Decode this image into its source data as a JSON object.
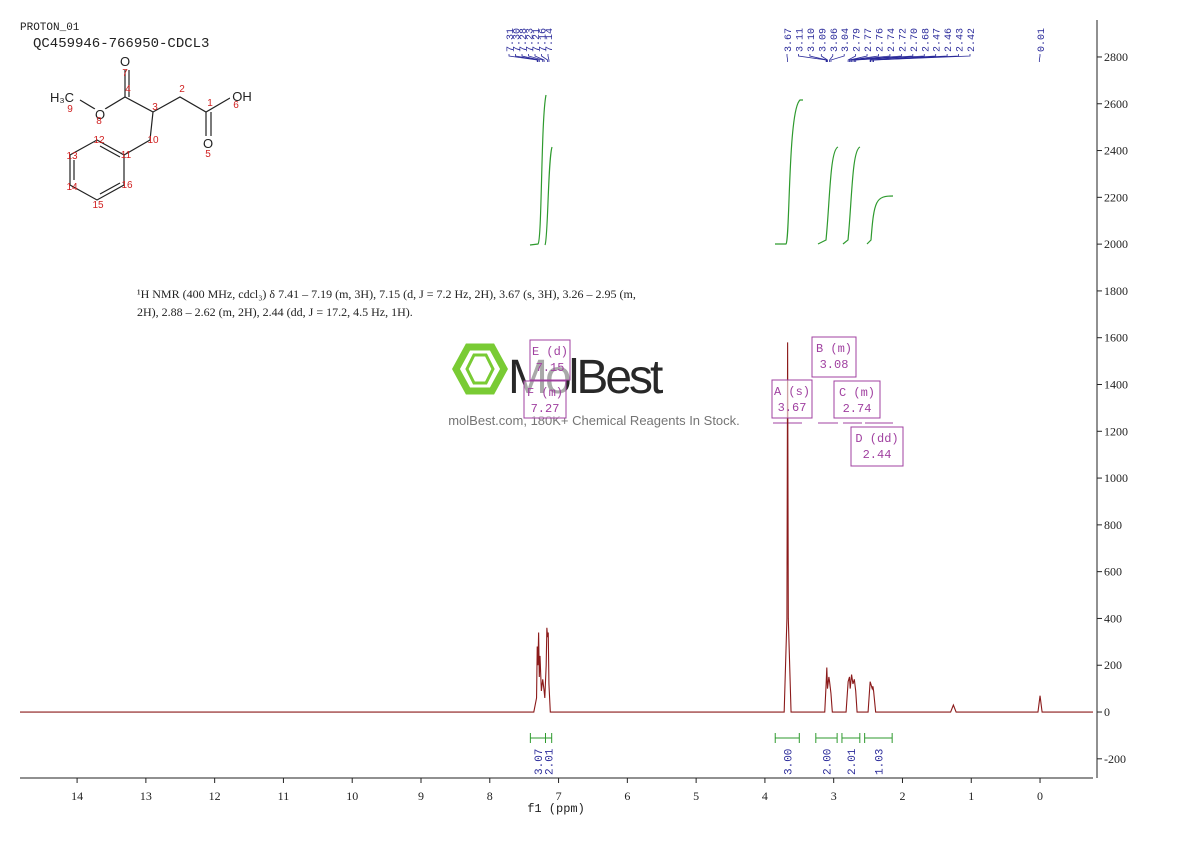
{
  "header": {
    "experiment": "PROTON_01",
    "sample": "QC459946-766950-CDCL3"
  },
  "molecule": {
    "atoms": [
      "O",
      "O",
      "OH",
      "O",
      "H₃C"
    ],
    "numbers": [
      "7",
      "4",
      "3",
      "2",
      "1",
      "6",
      "9",
      "8",
      "10",
      "5",
      "12",
      "11",
      "13",
      "16",
      "14",
      "15"
    ]
  },
  "description": [
    "¹H NMR (400 MHz, cdcl₃) δ 7.41 – 7.19 (m, 3H), 7.15 (d, J = 7.2 Hz, 2H), 3.67 (s, 3H), 3.26 – 2.95 (m,",
    "2H), 2.88 – 2.62 (m, 2H), 2.44 (dd, J = 17.2, 4.5 Hz, 1H)."
  ],
  "watermark": {
    "brand": "MolBest",
    "slogan": "molBest.com, 180K+ Chemical Reagents In Stock."
  },
  "chart_data": {
    "type": "line",
    "x_label": "f1 (ppm)",
    "xlim": [
      14.83,
      -0.77
    ],
    "xticks": [
      14,
      13,
      12,
      11,
      10,
      9,
      8,
      7,
      6,
      5,
      4,
      3,
      2,
      1,
      0
    ],
    "ylim": [
      -282,
      2958
    ],
    "yticks": [
      -200,
      0,
      200,
      400,
      600,
      800,
      1000,
      1200,
      1400,
      1600,
      1800,
      2000,
      2200,
      2400,
      2600,
      2800
    ],
    "series": [
      {
        "name": "spectrum",
        "color": "#8b1a1a",
        "x": [
          14.83,
          7.36,
          7.32,
          7.31,
          7.3,
          7.29,
          7.28,
          7.27,
          7.25,
          7.23,
          7.21,
          7.2,
          7.18,
          7.17,
          7.16,
          7.15,
          7.14,
          7.12,
          3.72,
          3.68,
          3.67,
          3.66,
          3.62,
          3.13,
          3.11,
          3.1,
          3.09,
          3.07,
          3.06,
          3.04,
          3.02,
          2.82,
          2.79,
          2.77,
          2.76,
          2.74,
          2.72,
          2.7,
          2.68,
          2.66,
          2.5,
          2.47,
          2.46,
          2.44,
          2.43,
          2.42,
          2.39,
          1.3,
          1.26,
          1.22,
          0.03,
          0.0,
          -0.03,
          -0.77
        ],
        "values": [
          0,
          0,
          60,
          280,
          200,
          340,
          150,
          240,
          90,
          140,
          90,
          60,
          200,
          360,
          320,
          340,
          120,
          0,
          0,
          400,
          1580,
          400,
          0,
          0,
          120,
          190,
          100,
          150,
          130,
          80,
          0,
          0,
          130,
          150,
          100,
          160,
          120,
          140,
          90,
          0,
          0,
          130,
          120,
          100,
          110,
          90,
          0,
          0,
          30,
          0,
          0,
          70,
          0,
          0
        ]
      }
    ],
    "peak_labels": [
      "7.31",
      "7.30",
      "7.28",
      "7.23",
      "7.21",
      "7.16",
      "7.14",
      "3.67",
      "3.11",
      "3.10",
      "3.09",
      "3.06",
      "3.04",
      "2.79",
      "2.77",
      "2.76",
      "2.74",
      "2.72",
      "2.70",
      "2.68",
      "2.47",
      "2.46",
      "2.43",
      "2.42",
      "0.01"
    ],
    "multiplets": [
      {
        "name": "E (d)",
        "shift": "7.15"
      },
      {
        "name": "F (m)",
        "shift": "7.27"
      },
      {
        "name": "A (s)",
        "shift": "3.67"
      },
      {
        "name": "B (m)",
        "shift": "3.08"
      },
      {
        "name": "C (m)",
        "shift": "2.74"
      },
      {
        "name": "D (dd)",
        "shift": "2.44"
      }
    ],
    "integrals": [
      {
        "label": "3.07",
        "range": [
          7.41,
          7.19
        ]
      },
      {
        "label": "2.01",
        "range": [
          7.19,
          7.1
        ]
      },
      {
        "label": "3.00",
        "range": [
          3.85,
          3.5
        ]
      },
      {
        "label": "2.00",
        "range": [
          3.26,
          2.95
        ]
      },
      {
        "label": "2.01",
        "range": [
          2.88,
          2.62
        ]
      },
      {
        "label": "1.03",
        "range": [
          2.55,
          2.15
        ]
      }
    ]
  }
}
